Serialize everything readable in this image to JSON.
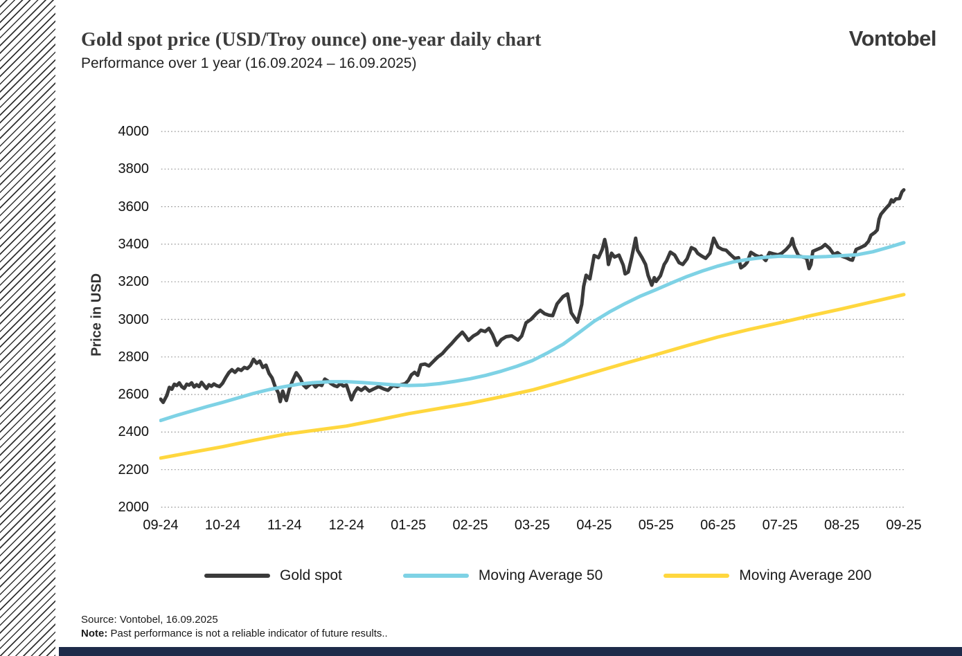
{
  "header": {
    "title": "Gold spot price (USD/Troy ounce) one-year daily chart",
    "subtitle": "Performance over 1 year (16.09.2024 – 16.09.2025)",
    "logo": "Vontobel"
  },
  "footer": {
    "source": "Source: Vontobel, 16.09.2025",
    "note_label": "Note:",
    "note_text": " Past performance is not a reliable indicator of future results.."
  },
  "chart_data": {
    "type": "line",
    "title": "Gold spot price (USD/Troy ounce) one-year daily chart",
    "xlabel": "",
    "ylabel": "Price in USD",
    "ylim": [
      2000,
      4000
    ],
    "y_ticks": [
      4000,
      3800,
      3600,
      3400,
      3200,
      3000,
      2800,
      2600,
      2400,
      2200,
      2000
    ],
    "x_ticks": [
      "09-24",
      "10-24",
      "11-24",
      "12-24",
      "01-25",
      "02-25",
      "03-25",
      "04-25",
      "05-25",
      "06-25",
      "07-25",
      "08-25",
      "09-25"
    ],
    "x_unit": "months since 16.09.2024 (0 = 09-24 tick, 12 = 09-25 tick)",
    "grid": "dotted horizontal gridlines",
    "legend_position": "bottom",
    "gridline_color": "#909090",
    "series": [
      {
        "name": "Gold spot",
        "color": "#3a3a3a",
        "width": 5,
        "points": [
          [
            0.0,
            2575
          ],
          [
            0.04,
            2558
          ],
          [
            0.1,
            2595
          ],
          [
            0.14,
            2638
          ],
          [
            0.18,
            2628
          ],
          [
            0.22,
            2655
          ],
          [
            0.26,
            2648
          ],
          [
            0.3,
            2662
          ],
          [
            0.34,
            2642
          ],
          [
            0.38,
            2632
          ],
          [
            0.42,
            2655
          ],
          [
            0.46,
            2650
          ],
          [
            0.5,
            2662
          ],
          [
            0.54,
            2640
          ],
          [
            0.58,
            2652
          ],
          [
            0.62,
            2642
          ],
          [
            0.66,
            2665
          ],
          [
            0.7,
            2648
          ],
          [
            0.74,
            2632
          ],
          [
            0.78,
            2652
          ],
          [
            0.82,
            2644
          ],
          [
            0.86,
            2656
          ],
          [
            0.9,
            2648
          ],
          [
            0.95,
            2642
          ],
          [
            1.0,
            2660
          ],
          [
            1.05,
            2690
          ],
          [
            1.1,
            2716
          ],
          [
            1.15,
            2732
          ],
          [
            1.2,
            2718
          ],
          [
            1.25,
            2736
          ],
          [
            1.3,
            2728
          ],
          [
            1.35,
            2744
          ],
          [
            1.4,
            2738
          ],
          [
            1.45,
            2754
          ],
          [
            1.5,
            2788
          ],
          [
            1.55,
            2766
          ],
          [
            1.6,
            2778
          ],
          [
            1.65,
            2744
          ],
          [
            1.7,
            2756
          ],
          [
            1.75,
            2712
          ],
          [
            1.8,
            2688
          ],
          [
            1.85,
            2640
          ],
          [
            1.9,
            2608
          ],
          [
            1.93,
            2562
          ],
          [
            1.97,
            2618
          ],
          [
            2.0,
            2590
          ],
          [
            2.03,
            2568
          ],
          [
            2.08,
            2632
          ],
          [
            2.13,
            2674
          ],
          [
            2.19,
            2716
          ],
          [
            2.25,
            2688
          ],
          [
            2.3,
            2652
          ],
          [
            2.35,
            2636
          ],
          [
            2.4,
            2650
          ],
          [
            2.45,
            2662
          ],
          [
            2.5,
            2640
          ],
          [
            2.55,
            2655
          ],
          [
            2.6,
            2648
          ],
          [
            2.65,
            2682
          ],
          [
            2.7,
            2672
          ],
          [
            2.75,
            2658
          ],
          [
            2.8,
            2648
          ],
          [
            2.85,
            2642
          ],
          [
            2.9,
            2658
          ],
          [
            2.95,
            2645
          ],
          [
            3.0,
            2650
          ],
          [
            3.04,
            2612
          ],
          [
            3.08,
            2572
          ],
          [
            3.13,
            2612
          ],
          [
            3.18,
            2635
          ],
          [
            3.24,
            2622
          ],
          [
            3.3,
            2638
          ],
          [
            3.37,
            2618
          ],
          [
            3.44,
            2630
          ],
          [
            3.52,
            2642
          ],
          [
            3.6,
            2630
          ],
          [
            3.67,
            2622
          ],
          [
            3.75,
            2648
          ],
          [
            3.82,
            2642
          ],
          [
            3.88,
            2652
          ],
          [
            3.95,
            2658
          ],
          [
            4.0,
            2675
          ],
          [
            4.05,
            2705
          ],
          [
            4.1,
            2718
          ],
          [
            4.15,
            2702
          ],
          [
            4.2,
            2758
          ],
          [
            4.27,
            2762
          ],
          [
            4.33,
            2752
          ],
          [
            4.4,
            2775
          ],
          [
            4.47,
            2798
          ],
          [
            4.55,
            2818
          ],
          [
            4.62,
            2845
          ],
          [
            4.7,
            2872
          ],
          [
            4.78,
            2902
          ],
          [
            4.87,
            2932
          ],
          [
            4.92,
            2912
          ],
          [
            4.97,
            2888
          ],
          [
            5.05,
            2912
          ],
          [
            5.12,
            2925
          ],
          [
            5.17,
            2942
          ],
          [
            5.24,
            2935
          ],
          [
            5.3,
            2952
          ],
          [
            5.36,
            2918
          ],
          [
            5.43,
            2862
          ],
          [
            5.5,
            2892
          ],
          [
            5.58,
            2908
          ],
          [
            5.67,
            2912
          ],
          [
            5.77,
            2890
          ],
          [
            5.83,
            2912
          ],
          [
            5.9,
            2982
          ],
          [
            5.98,
            3000
          ],
          [
            6.07,
            3032
          ],
          [
            6.13,
            3048
          ],
          [
            6.2,
            3030
          ],
          [
            6.27,
            3022
          ],
          [
            6.33,
            3020
          ],
          [
            6.4,
            3082
          ],
          [
            6.5,
            3122
          ],
          [
            6.57,
            3135
          ],
          [
            6.63,
            3035
          ],
          [
            6.73,
            2985
          ],
          [
            6.8,
            3080
          ],
          [
            6.83,
            3175
          ],
          [
            6.87,
            3235
          ],
          [
            6.93,
            3215
          ],
          [
            7.0,
            3340
          ],
          [
            7.07,
            3328
          ],
          [
            7.13,
            3372
          ],
          [
            7.17,
            3425
          ],
          [
            7.2,
            3380
          ],
          [
            7.23,
            3292
          ],
          [
            7.28,
            3352
          ],
          [
            7.33,
            3332
          ],
          [
            7.4,
            3342
          ],
          [
            7.47,
            3288
          ],
          [
            7.5,
            3242
          ],
          [
            7.55,
            3252
          ],
          [
            7.6,
            3322
          ],
          [
            7.67,
            3432
          ],
          [
            7.7,
            3368
          ],
          [
            7.77,
            3330
          ],
          [
            7.83,
            3292
          ],
          [
            7.87,
            3235
          ],
          [
            7.93,
            3182
          ],
          [
            7.97,
            3222
          ],
          [
            8.0,
            3202
          ],
          [
            8.07,
            3232
          ],
          [
            8.13,
            3292
          ],
          [
            8.17,
            3312
          ],
          [
            8.23,
            3358
          ],
          [
            8.3,
            3342
          ],
          [
            8.37,
            3302
          ],
          [
            8.43,
            3292
          ],
          [
            8.5,
            3322
          ],
          [
            8.57,
            3382
          ],
          [
            8.63,
            3372
          ],
          [
            8.67,
            3352
          ],
          [
            8.73,
            3338
          ],
          [
            8.8,
            3325
          ],
          [
            8.87,
            3352
          ],
          [
            8.93,
            3432
          ],
          [
            9.0,
            3385
          ],
          [
            9.07,
            3372
          ],
          [
            9.13,
            3368
          ],
          [
            9.2,
            3345
          ],
          [
            9.27,
            3324
          ],
          [
            9.33,
            3328
          ],
          [
            9.37,
            3274
          ],
          [
            9.43,
            3288
          ],
          [
            9.47,
            3303
          ],
          [
            9.53,
            3357
          ],
          [
            9.6,
            3342
          ],
          [
            9.67,
            3332
          ],
          [
            9.7,
            3337
          ],
          [
            9.77,
            3313
          ],
          [
            9.83,
            3355
          ],
          [
            9.9,
            3348
          ],
          [
            9.97,
            3343
          ],
          [
            10.03,
            3352
          ],
          [
            10.1,
            3372
          ],
          [
            10.17,
            3398
          ],
          [
            10.2,
            3430
          ],
          [
            10.23,
            3388
          ],
          [
            10.3,
            3338
          ],
          [
            10.37,
            3332
          ],
          [
            10.43,
            3326
          ],
          [
            10.47,
            3270
          ],
          [
            10.5,
            3292
          ],
          [
            10.53,
            3362
          ],
          [
            10.6,
            3372
          ],
          [
            10.67,
            3382
          ],
          [
            10.73,
            3398
          ],
          [
            10.8,
            3378
          ],
          [
            10.87,
            3345
          ],
          [
            10.93,
            3355
          ],
          [
            11.0,
            3336
          ],
          [
            11.07,
            3328
          ],
          [
            11.13,
            3318
          ],
          [
            11.17,
            3315
          ],
          [
            11.23,
            3372
          ],
          [
            11.3,
            3382
          ],
          [
            11.37,
            3393
          ],
          [
            11.43,
            3415
          ],
          [
            11.47,
            3448
          ],
          [
            11.53,
            3462
          ],
          [
            11.57,
            3476
          ],
          [
            11.6,
            3533
          ],
          [
            11.63,
            3559
          ],
          [
            11.7,
            3587
          ],
          [
            11.77,
            3612
          ],
          [
            11.8,
            3636
          ],
          [
            11.83,
            3625
          ],
          [
            11.87,
            3641
          ],
          [
            11.93,
            3643
          ],
          [
            11.97,
            3679
          ],
          [
            12.0,
            3689
          ]
        ]
      },
      {
        "name": "Moving Average 50",
        "color": "#7ed2e5",
        "width": 5,
        "points": [
          [
            0,
            2462
          ],
          [
            0.25,
            2488
          ],
          [
            0.5,
            2512
          ],
          [
            0.75,
            2536
          ],
          [
            1,
            2558
          ],
          [
            1.25,
            2582
          ],
          [
            1.5,
            2606
          ],
          [
            1.75,
            2626
          ],
          [
            2,
            2642
          ],
          [
            2.25,
            2656
          ],
          [
            2.5,
            2664
          ],
          [
            2.75,
            2668
          ],
          [
            3,
            2668
          ],
          [
            3.25,
            2664
          ],
          [
            3.5,
            2658
          ],
          [
            3.75,
            2652
          ],
          [
            4,
            2648
          ],
          [
            4.25,
            2650
          ],
          [
            4.5,
            2658
          ],
          [
            4.75,
            2670
          ],
          [
            5,
            2684
          ],
          [
            5.25,
            2702
          ],
          [
            5.5,
            2724
          ],
          [
            5.75,
            2750
          ],
          [
            6,
            2780
          ],
          [
            6.25,
            2822
          ],
          [
            6.5,
            2868
          ],
          [
            6.75,
            2928
          ],
          [
            7,
            2990
          ],
          [
            7.25,
            3040
          ],
          [
            7.5,
            3084
          ],
          [
            7.75,
            3124
          ],
          [
            8,
            3158
          ],
          [
            8.25,
            3194
          ],
          [
            8.5,
            3228
          ],
          [
            8.75,
            3258
          ],
          [
            9,
            3284
          ],
          [
            9.25,
            3306
          ],
          [
            9.5,
            3320
          ],
          [
            9.75,
            3330
          ],
          [
            10,
            3336
          ],
          [
            10.25,
            3334
          ],
          [
            10.5,
            3331
          ],
          [
            10.75,
            3334
          ],
          [
            11,
            3339
          ],
          [
            11.25,
            3344
          ],
          [
            11.5,
            3360
          ],
          [
            11.75,
            3383
          ],
          [
            12,
            3408
          ]
        ]
      },
      {
        "name": "Moving Average 200",
        "color": "#ffd73e",
        "width": 5,
        "points": [
          [
            0,
            2262
          ],
          [
            0.5,
            2292
          ],
          [
            1,
            2322
          ],
          [
            1.5,
            2356
          ],
          [
            2,
            2388
          ],
          [
            2.5,
            2410
          ],
          [
            3,
            2432
          ],
          [
            3.5,
            2464
          ],
          [
            4,
            2498
          ],
          [
            4.5,
            2526
          ],
          [
            5,
            2554
          ],
          [
            5.5,
            2588
          ],
          [
            6,
            2624
          ],
          [
            6.5,
            2670
          ],
          [
            7,
            2718
          ],
          [
            7.5,
            2766
          ],
          [
            8,
            2812
          ],
          [
            8.5,
            2860
          ],
          [
            9,
            2906
          ],
          [
            9.5,
            2946
          ],
          [
            10,
            2982
          ],
          [
            10.5,
            3020
          ],
          [
            11,
            3056
          ],
          [
            11.5,
            3094
          ],
          [
            12,
            3132
          ]
        ]
      }
    ]
  }
}
